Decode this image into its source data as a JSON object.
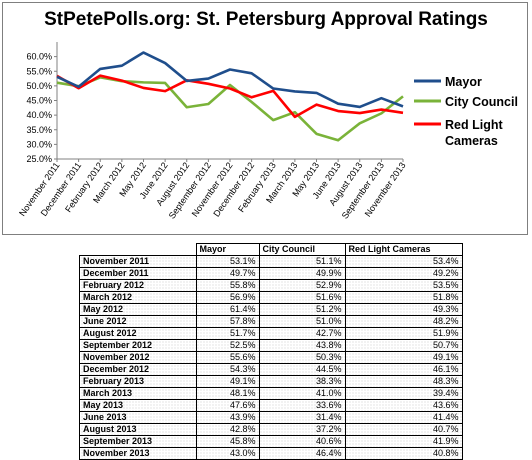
{
  "chart_data": {
    "type": "line",
    "title": "StPetePolls.org: St. Petersburg Approval Ratings",
    "categories": [
      "November 2011",
      "December 2011",
      "February 2012",
      "March 2012",
      "May 2012",
      "June 2012",
      "August 2012",
      "September 2012",
      "November 2012",
      "December 2012",
      "February 2013",
      "March 2013",
      "May 2013",
      "June 2013",
      "August 2013",
      "September 2013",
      "November 2013"
    ],
    "series": [
      {
        "name": "Mayor",
        "color": "#1f4e8c",
        "values": [
          53.1,
          49.7,
          55.8,
          56.9,
          61.4,
          57.8,
          51.7,
          52.5,
          55.6,
          54.3,
          49.1,
          48.1,
          47.6,
          43.9,
          42.8,
          45.8,
          43.0
        ]
      },
      {
        "name": "City Council",
        "color": "#7ab339",
        "values": [
          51.1,
          49.9,
          52.9,
          51.6,
          51.2,
          51.0,
          42.7,
          43.8,
          50.3,
          44.5,
          38.3,
          41.0,
          33.6,
          31.4,
          37.2,
          40.6,
          46.4
        ]
      },
      {
        "name": "Red Light Cameras",
        "color": "#ff0000",
        "values": [
          53.4,
          49.2,
          53.5,
          51.8,
          49.3,
          48.2,
          51.9,
          50.7,
          49.1,
          46.1,
          48.3,
          39.4,
          43.6,
          41.4,
          40.7,
          41.9,
          40.8
        ]
      }
    ],
    "legend": [
      {
        "lines": [
          "Mayor"
        ]
      },
      {
        "lines": [
          "City Council"
        ]
      },
      {
        "lines": [
          "Red Light",
          "Cameras"
        ]
      }
    ],
    "yticks": [
      "60.0%",
      "55.0%",
      "50.0%",
      "45.0%",
      "40.0%",
      "35.0%",
      "30.0%",
      "25.0%"
    ],
    "ytick_values": [
      60,
      55,
      50,
      45,
      40,
      35,
      30,
      25
    ],
    "ylim": [
      25,
      65
    ],
    "legend_position": "right",
    "grid": false
  },
  "table": {
    "headers": [
      "Mayor",
      "City Council",
      "Red Light Cameras"
    ],
    "rows": [
      {
        "label": "November 2011",
        "values": [
          "53.1%",
          "51.1%",
          "53.4%"
        ]
      },
      {
        "label": "December 2011",
        "values": [
          "49.7%",
          "49.9%",
          "49.2%"
        ]
      },
      {
        "label": "February 2012",
        "values": [
          "55.8%",
          "52.9%",
          "53.5%"
        ]
      },
      {
        "label": "March 2012",
        "values": [
          "56.9%",
          "51.6%",
          "51.8%"
        ]
      },
      {
        "label": "May 2012",
        "values": [
          "61.4%",
          "51.2%",
          "49.3%"
        ]
      },
      {
        "label": "June 2012",
        "values": [
          "57.8%",
          "51.0%",
          "48.2%"
        ]
      },
      {
        "label": "August 2012",
        "values": [
          "51.7%",
          "42.7%",
          "51.9%"
        ]
      },
      {
        "label": "September 2012",
        "values": [
          "52.5%",
          "43.8%",
          "50.7%"
        ]
      },
      {
        "label": "November 2012",
        "values": [
          "55.6%",
          "50.3%",
          "49.1%"
        ]
      },
      {
        "label": "December 2012",
        "values": [
          "54.3%",
          "44.5%",
          "46.1%"
        ]
      },
      {
        "label": "February 2013",
        "values": [
          "49.1%",
          "38.3%",
          "48.3%"
        ]
      },
      {
        "label": "March 2013",
        "values": [
          "48.1%",
          "41.0%",
          "39.4%"
        ]
      },
      {
        "label": "May 2013",
        "values": [
          "47.6%",
          "33.6%",
          "43.6%"
        ]
      },
      {
        "label": "June 2013",
        "values": [
          "43.9%",
          "31.4%",
          "41.4%"
        ]
      },
      {
        "label": "August 2013",
        "values": [
          "42.8%",
          "37.2%",
          "40.7%"
        ]
      },
      {
        "label": "September 2013",
        "values": [
          "45.8%",
          "40.6%",
          "41.9%"
        ]
      },
      {
        "label": "November 2013",
        "values": [
          "43.0%",
          "46.4%",
          "40.8%"
        ]
      }
    ]
  }
}
